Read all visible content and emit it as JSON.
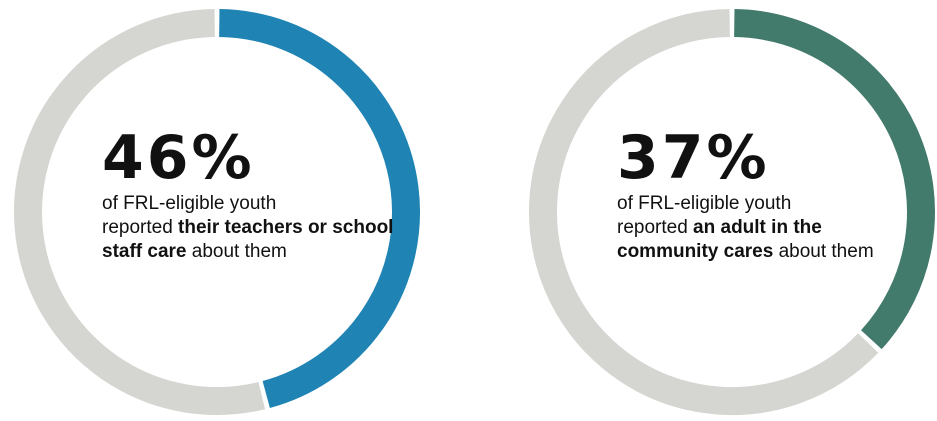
{
  "chart_data": [
    {
      "type": "pie",
      "style": "donut",
      "value_label": "46%",
      "values": [
        46,
        54
      ],
      "segment_colors": [
        "#1f83b4",
        "#d5d6d1"
      ],
      "caption": {
        "line1": "of FRL-eligible youth",
        "pre": "reported ",
        "bold": "their teachers or school staff care",
        "post": " about them"
      }
    },
    {
      "type": "pie",
      "style": "donut",
      "value_label": "37%",
      "values": [
        37,
        63
      ],
      "segment_colors": [
        "#427a6c",
        "#d5d6d1"
      ],
      "caption": {
        "line1": "of FRL-eligible youth",
        "pre": "reported ",
        "bold": "an adult in the community cares",
        "post": " about them"
      }
    }
  ]
}
